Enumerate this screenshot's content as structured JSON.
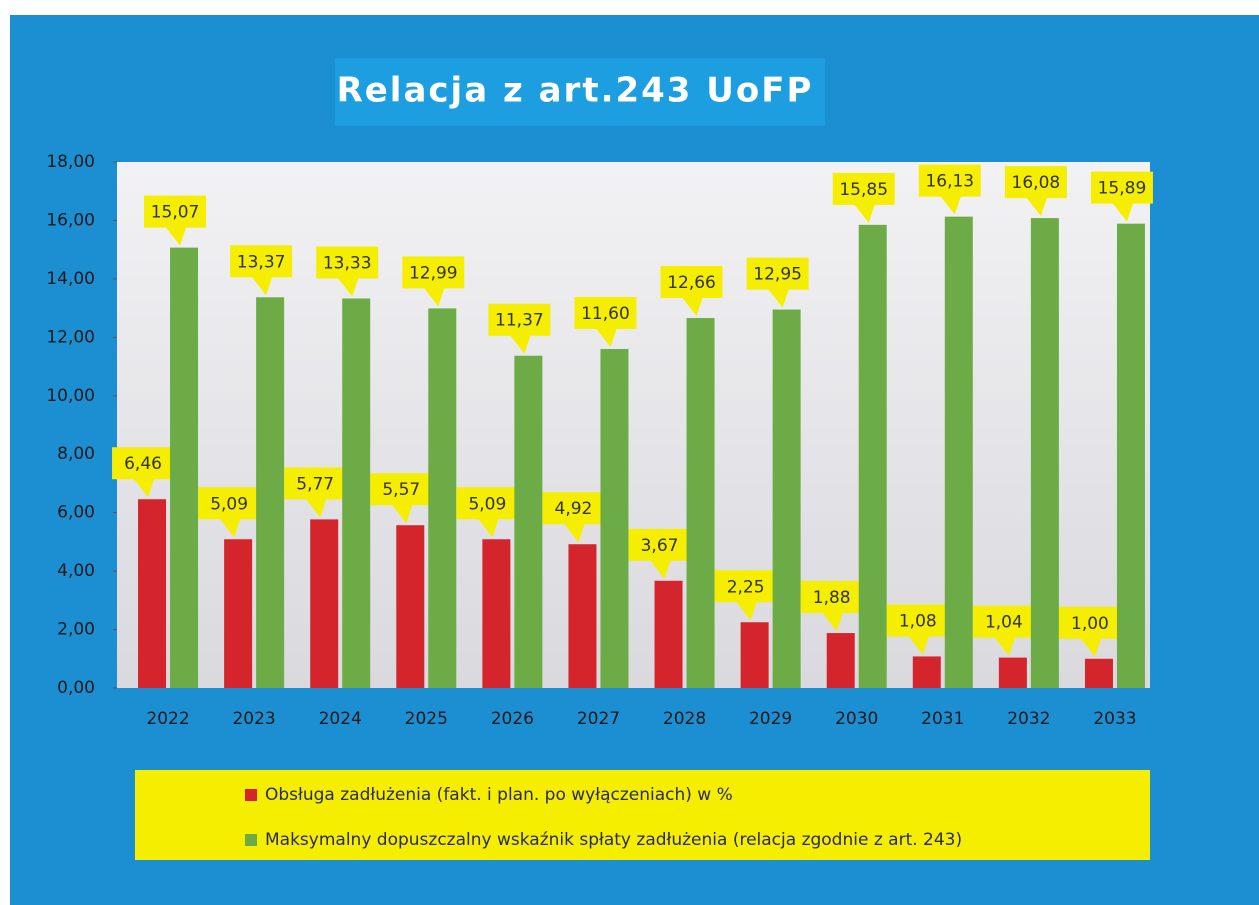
{
  "chart_data": {
    "type": "bar",
    "title": "Relacja z art.243 UoFP",
    "categories": [
      "2022",
      "2023",
      "2024",
      "2025",
      "2026",
      "2027",
      "2028",
      "2029",
      "2030",
      "2031",
      "2032",
      "2033"
    ],
    "series": [
      {
        "name": "Obsługa zadłużenia (fakt. i plan. po wyłączeniach) w %",
        "color": "#d4242c",
        "values": [
          6.46,
          5.09,
          5.77,
          5.57,
          5.09,
          4.92,
          3.67,
          2.25,
          1.88,
          1.08,
          1.04,
          1.0
        ],
        "value_labels": [
          "6,46",
          "5,09",
          "5,77",
          "5,57",
          "5,09",
          "4,92",
          "3,67",
          "2,25",
          "1,88",
          "1,08",
          "1,04",
          "1,00"
        ]
      },
      {
        "name": "Maksymalny dopuszczalny wskaźnik spłaty  zadłużenia (relacja zgodnie z art. 243)",
        "color": "#6cab46",
        "values": [
          15.07,
          13.37,
          13.33,
          12.99,
          11.37,
          11.6,
          12.66,
          12.95,
          15.85,
          16.13,
          16.08,
          15.89
        ],
        "value_labels": [
          "15,07",
          "13,37",
          "13,33",
          "12,99",
          "11,37",
          "11,60",
          "12,66",
          "12,95",
          "15,85",
          "16,13",
          "16,08",
          "15,89"
        ]
      }
    ],
    "ylim": [
      0,
      18
    ],
    "yticks": [
      {
        "value": 0,
        "label": "0,00"
      },
      {
        "value": 2,
        "label": "2,00"
      },
      {
        "value": 4,
        "label": "4,00"
      },
      {
        "value": 6,
        "label": "6,00"
      },
      {
        "value": 8,
        "label": "8,00"
      },
      {
        "value": 10,
        "label": "10,00"
      },
      {
        "value": 12,
        "label": "12,00"
      },
      {
        "value": 14,
        "label": "14,00"
      },
      {
        "value": 16,
        "label": "16,00"
      },
      {
        "value": 18,
        "label": "18,00"
      }
    ],
    "grid": false
  }
}
